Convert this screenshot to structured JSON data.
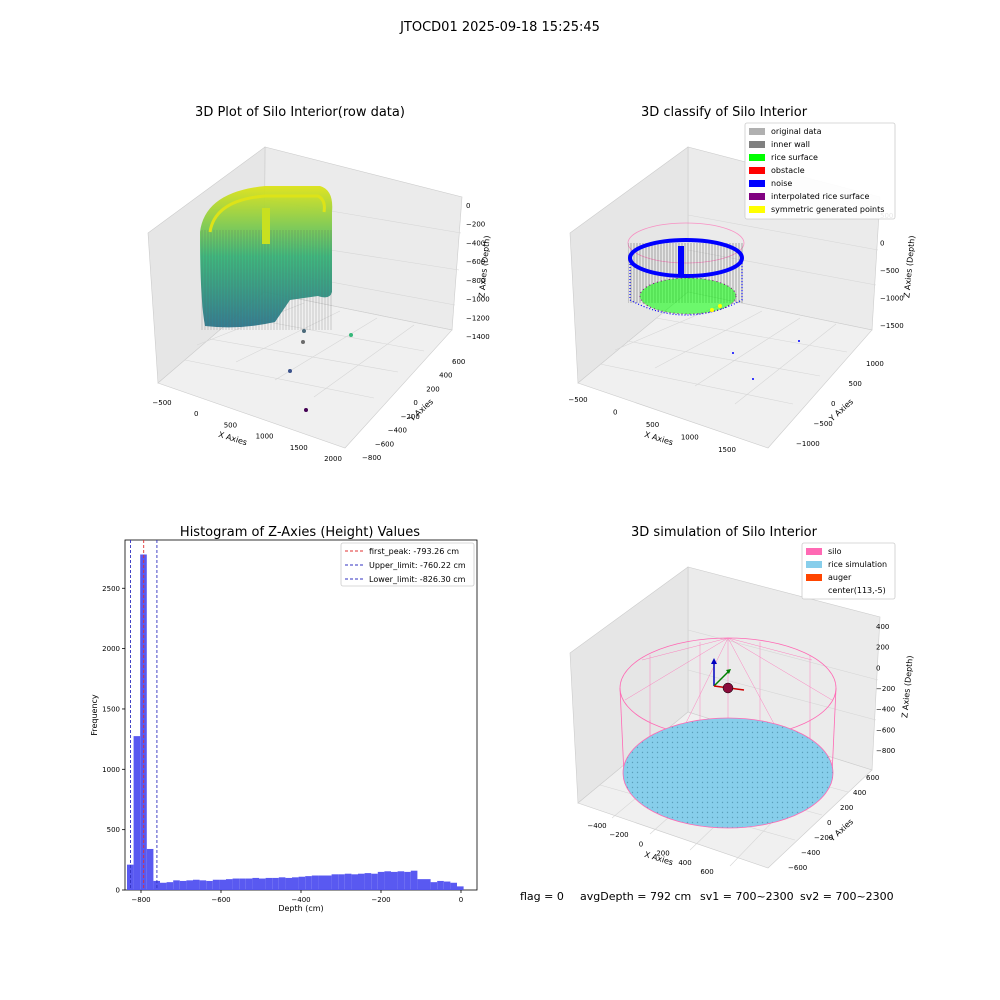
{
  "figure": {
    "suptitle": "JTOCD01 2025-09-18 15:25:45",
    "status_line": {
      "flag": "flag = 0",
      "avg_depth": "avgDepth = 792 cm",
      "sv1": "sv1 = 700~2300",
      "sv2": "sv2 = 700~2300"
    }
  },
  "colors": {
    "hist_bar": "#5050f0",
    "first_peak_line": "#e03030",
    "limit_line": "#3030c0",
    "silo_pink": "#ff69b4",
    "rice_sim": "#87ceeb",
    "auger": "#ff4500",
    "inner_wall": "#808080",
    "original_data": "#b0b0b0",
    "rice_surface": "#00ff00",
    "obstacle": "#ff0000",
    "noise": "#0000ff",
    "interpolated": "#800080",
    "symmetric": "#ffff00",
    "viridis_low": "#2a788e",
    "viridis_high": "#dde318"
  },
  "panels": {
    "raw": {
      "title": "3D Plot of Silo Interior(row data)",
      "xlabel": "X Axies",
      "ylabel": "Y Axies",
      "zlabel": "Z Axies (Depth)",
      "x_ticks": [
        "−500",
        "0",
        "500",
        "1000",
        "1500",
        "2000"
      ],
      "y_ticks": [
        "600",
        "400",
        "200",
        "0",
        "−200",
        "−400",
        "−600",
        "−800"
      ],
      "z_ticks": [
        "0",
        "−200",
        "−400",
        "−600",
        "−800",
        "−1000",
        "−1200",
        "−1400"
      ]
    },
    "classify": {
      "title": "3D classify of Silo Interior",
      "xlabel": "X Axies",
      "ylabel": "Y Axies",
      "zlabel": "Z Axies (Depth)",
      "x_ticks": [
        "−500",
        "0",
        "500",
        "1000",
        "1500"
      ],
      "y_ticks": [
        "1000",
        "500",
        "0",
        "−500",
        "−1000"
      ],
      "z_ticks": [
        "500",
        "0",
        "−500",
        "−1000",
        "−1500"
      ],
      "legend": [
        {
          "label": "original data",
          "color": "#b0b0b0"
        },
        {
          "label": "inner wall",
          "color": "#808080"
        },
        {
          "label": "rice surface",
          "color": "#00ff00"
        },
        {
          "label": "obstacle",
          "color": "#ff0000"
        },
        {
          "label": "noise",
          "color": "#0000ff"
        },
        {
          "label": "interpolated rice surface",
          "color": "#800080"
        },
        {
          "label": "symmetric generated points",
          "color": "#ffff00"
        }
      ]
    },
    "simulation": {
      "title": "3D simulation of Silo Interior",
      "xlabel": "X Axies",
      "ylabel": "Y Axies",
      "zlabel": "Z Axies (Depth)",
      "x_ticks": [
        "−400",
        "−200",
        "0",
        "200",
        "400",
        "600"
      ],
      "y_ticks": [
        "600",
        "400",
        "200",
        "0",
        "−200",
        "−400",
        "−600"
      ],
      "z_ticks": [
        "400",
        "200",
        "0",
        "−200",
        "−400",
        "−600",
        "−800"
      ],
      "legend": [
        {
          "label": "silo",
          "color": "#ff69b4"
        },
        {
          "label": "rice simulation",
          "color": "#87ceeb"
        },
        {
          "label": "auger",
          "color": "#ff4500"
        },
        {
          "label": "center(113,-5)",
          "color": ""
        }
      ]
    }
  },
  "chart_data": {
    "type": "bar",
    "title": "Histogram of Z-Axies (Height) Values",
    "xlabel": "Depth (cm)",
    "ylabel": "Frequency",
    "xlim": [
      -840,
      40
    ],
    "ylim": [
      0,
      2900
    ],
    "x_ticks": [
      -800,
      -600,
      -400,
      -200,
      0
    ],
    "x_tick_labels": [
      "−800",
      "−600",
      "−400",
      "−200",
      "0"
    ],
    "y_ticks": [
      0,
      500,
      1000,
      1500,
      2000,
      2500
    ],
    "y_tick_labels": [
      "0",
      "500",
      "1000",
      "1500",
      "2000",
      "2500"
    ],
    "bin_width": 16.5,
    "bins": [
      {
        "x0": -835,
        "v": 210
      },
      {
        "x0": -818.5,
        "v": 1275
      },
      {
        "x0": -802,
        "v": 2780
      },
      {
        "x0": -785.5,
        "v": 340
      },
      {
        "x0": -769,
        "v": 75
      },
      {
        "x0": -752.5,
        "v": 60
      },
      {
        "x0": -736,
        "v": 65
      },
      {
        "x0": -719.5,
        "v": 80
      },
      {
        "x0": -703,
        "v": 75
      },
      {
        "x0": -686.5,
        "v": 80
      },
      {
        "x0": -670,
        "v": 85
      },
      {
        "x0": -653.5,
        "v": 80
      },
      {
        "x0": -637,
        "v": 75
      },
      {
        "x0": -620.5,
        "v": 85
      },
      {
        "x0": -604,
        "v": 85
      },
      {
        "x0": -587.5,
        "v": 90
      },
      {
        "x0": -571,
        "v": 95
      },
      {
        "x0": -554.5,
        "v": 95
      },
      {
        "x0": -538,
        "v": 95
      },
      {
        "x0": -521.5,
        "v": 100
      },
      {
        "x0": -505,
        "v": 95
      },
      {
        "x0": -488.5,
        "v": 100
      },
      {
        "x0": -472,
        "v": 100
      },
      {
        "x0": -455.5,
        "v": 105
      },
      {
        "x0": -439,
        "v": 100
      },
      {
        "x0": -422.5,
        "v": 105
      },
      {
        "x0": -406,
        "v": 110
      },
      {
        "x0": -389.5,
        "v": 115
      },
      {
        "x0": -373,
        "v": 120
      },
      {
        "x0": -356.5,
        "v": 120
      },
      {
        "x0": -340,
        "v": 120
      },
      {
        "x0": -323.5,
        "v": 130
      },
      {
        "x0": -307,
        "v": 130
      },
      {
        "x0": -290.5,
        "v": 135
      },
      {
        "x0": -274,
        "v": 130
      },
      {
        "x0": -257.5,
        "v": 135
      },
      {
        "x0": -241,
        "v": 140
      },
      {
        "x0": -224.5,
        "v": 135
      },
      {
        "x0": -208,
        "v": 150
      },
      {
        "x0": -191.5,
        "v": 155
      },
      {
        "x0": -175,
        "v": 150
      },
      {
        "x0": -158.5,
        "v": 155
      },
      {
        "x0": -142,
        "v": 150
      },
      {
        "x0": -125.5,
        "v": 160
      },
      {
        "x0": -109,
        "v": 90
      },
      {
        "x0": -92.5,
        "v": 90
      },
      {
        "x0": -76,
        "v": 65
      },
      {
        "x0": -59.5,
        "v": 75
      },
      {
        "x0": -43,
        "v": 70
      },
      {
        "x0": -26.5,
        "v": 60
      },
      {
        "x0": -10,
        "v": 30
      }
    ],
    "vlines": [
      {
        "name": "first_peak: -793.26 cm",
        "x": -793.26,
        "color": "#e03030"
      },
      {
        "name": "Upper_limit: -760.22 cm",
        "x": -760.22,
        "color": "#3030c0"
      },
      {
        "name": "Lower_limit: -826.30 cm",
        "x": -826.3,
        "color": "#3030c0"
      }
    ],
    "legend_position": "top-right"
  }
}
